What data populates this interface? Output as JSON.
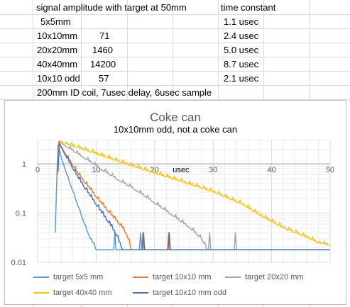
{
  "table": {
    "header_signal": "signal amplitude with target at 50mm",
    "header_time": "time constant",
    "rows": [
      {
        "label": "5x5mm",
        "value": "",
        "time": "1.1 usec"
      },
      {
        "label": "10x10mm",
        "value": "71",
        "time": "2.4 usec"
      },
      {
        "label": "20x20mm",
        "value": "1460",
        "time": "5.0 usec"
      },
      {
        "label": "40x40mm",
        "value": "14200",
        "time": "8.7 usec"
      },
      {
        "label": "10x10 odd",
        "value": "57",
        "time": "2.1 usec"
      }
    ],
    "note": "200mm ID coil, 7usec delay, 6usec sample"
  },
  "chart_data": {
    "type": "line",
    "title": "Coke can",
    "subtitle": "10x10mm odd, not a coke can",
    "xlabel": "usec",
    "ylabel": "",
    "y_scale": "log",
    "xlim": [
      0,
      50
    ],
    "ylim": [
      0.01,
      3
    ],
    "x_ticks": [
      "0",
      "10",
      "20",
      "30",
      "40",
      "50"
    ],
    "y_ticks": [
      "1",
      "0.1",
      "0.01"
    ],
    "grid": true,
    "legend_position": "bottom",
    "noise_floor": 0.018,
    "series": [
      {
        "name": "target 5x5 mm",
        "color": "#5b9bd5",
        "points": [
          [
            3,
            0.04
          ],
          [
            3.3,
            0.6
          ],
          [
            3.5,
            2.4
          ],
          [
            4,
            1.4
          ],
          [
            5,
            0.6
          ],
          [
            6,
            0.28
          ],
          [
            7,
            0.13
          ],
          [
            8,
            0.06
          ],
          [
            9,
            0.03
          ],
          [
            9.5,
            0.025
          ],
          [
            10,
            0.018
          ]
        ]
      },
      {
        "name": "target 10x10 mm",
        "color": "#ed7d31",
        "points": [
          [
            3.4,
            0.6
          ],
          [
            3.6,
            2.8
          ],
          [
            5,
            1.4
          ],
          [
            7,
            0.6
          ],
          [
            9,
            0.3
          ],
          [
            11,
            0.15
          ],
          [
            13,
            0.08
          ],
          [
            14.5,
            0.05
          ],
          [
            15.5,
            0.03
          ],
          [
            16,
            0.018
          ]
        ]
      },
      {
        "name": "target 20x20 mm",
        "color": "#a5a5a5",
        "points": [
          [
            3.6,
            2.9
          ],
          [
            5,
            2.2
          ],
          [
            8,
            1.3
          ],
          [
            11,
            0.75
          ],
          [
            14,
            0.45
          ],
          [
            17,
            0.28
          ],
          [
            20,
            0.16
          ],
          [
            23,
            0.09
          ],
          [
            26,
            0.05
          ],
          [
            28,
            0.03
          ],
          [
            29,
            0.018
          ]
        ]
      },
      {
        "name": "target 40x40 mm",
        "color": "#ffc000",
        "points": [
          [
            3.7,
            2.95
          ],
          [
            6,
            2.3
          ],
          [
            10,
            1.6
          ],
          [
            15,
            1.0
          ],
          [
            20,
            0.65
          ],
          [
            25,
            0.42
          ],
          [
            30,
            0.27
          ],
          [
            35,
            0.15
          ],
          [
            38,
            0.09
          ],
          [
            42,
            0.05
          ],
          [
            46,
            0.032
          ],
          [
            48,
            0.025
          ],
          [
            50,
            0.022
          ]
        ]
      },
      {
        "name": "target 10x10 mm odd",
        "color": "#4472c4",
        "points": [
          [
            3.5,
            0.7
          ],
          [
            3.7,
            2.6
          ],
          [
            5,
            1.3
          ],
          [
            7,
            0.5
          ],
          [
            9,
            0.22
          ],
          [
            11,
            0.1
          ],
          [
            12.5,
            0.055
          ],
          [
            13.5,
            0.035
          ],
          [
            14.5,
            0.018
          ]
        ]
      }
    ]
  }
}
